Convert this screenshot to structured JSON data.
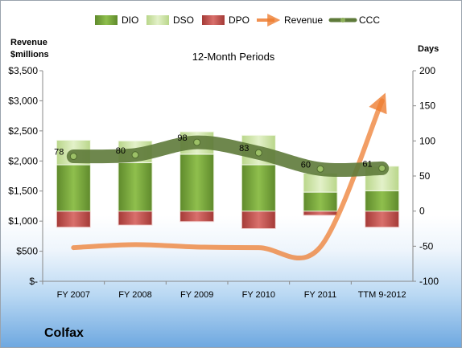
{
  "chart_data": {
    "type": "bar",
    "title": "12-Month Periods",
    "left_axis_title": [
      "Revenue",
      "$millions"
    ],
    "right_axis_title": "Days",
    "categories": [
      "FY 2007",
      "FY 2008",
      "FY 2009",
      "FY 2010",
      "FY 2011",
      "TTM 9-2012"
    ],
    "left_ticks": [
      "$3,500",
      "$3,000",
      "$2,500",
      "$2,000",
      "$1,500",
      "$1,000",
      "$500",
      "$-"
    ],
    "right_ticks": [
      "200",
      "150",
      "100",
      "50",
      "0",
      "-50",
      "-100"
    ],
    "y2lim": [
      -100,
      200
    ],
    "series": [
      {
        "name": "DIO",
        "color": "#7aa53b",
        "values": [
          66,
          69,
          81,
          66,
          27,
          29
        ]
      },
      {
        "name": "DSO",
        "color": "#cfe6a6",
        "values": [
          35,
          31,
          32,
          42,
          27,
          35
        ]
      },
      {
        "name": "DPO",
        "color": "#c0504d",
        "values": [
          -23,
          -20,
          -15,
          -25,
          -6,
          -23
        ]
      },
      {
        "name": "Revenue",
        "color": "#ed7d31",
        "values": [
          560,
          610,
          570,
          560,
          570,
          3000
        ]
      },
      {
        "name": "CCC",
        "color": "#5e7a3a",
        "values": [
          78,
          80,
          98,
          83,
          60,
          61
        ]
      }
    ],
    "ccc_labels": [
      "78",
      "80",
      "98",
      "83",
      "60",
      "61"
    ],
    "legend_position": "top",
    "grid": false
  },
  "company": "Colfax"
}
